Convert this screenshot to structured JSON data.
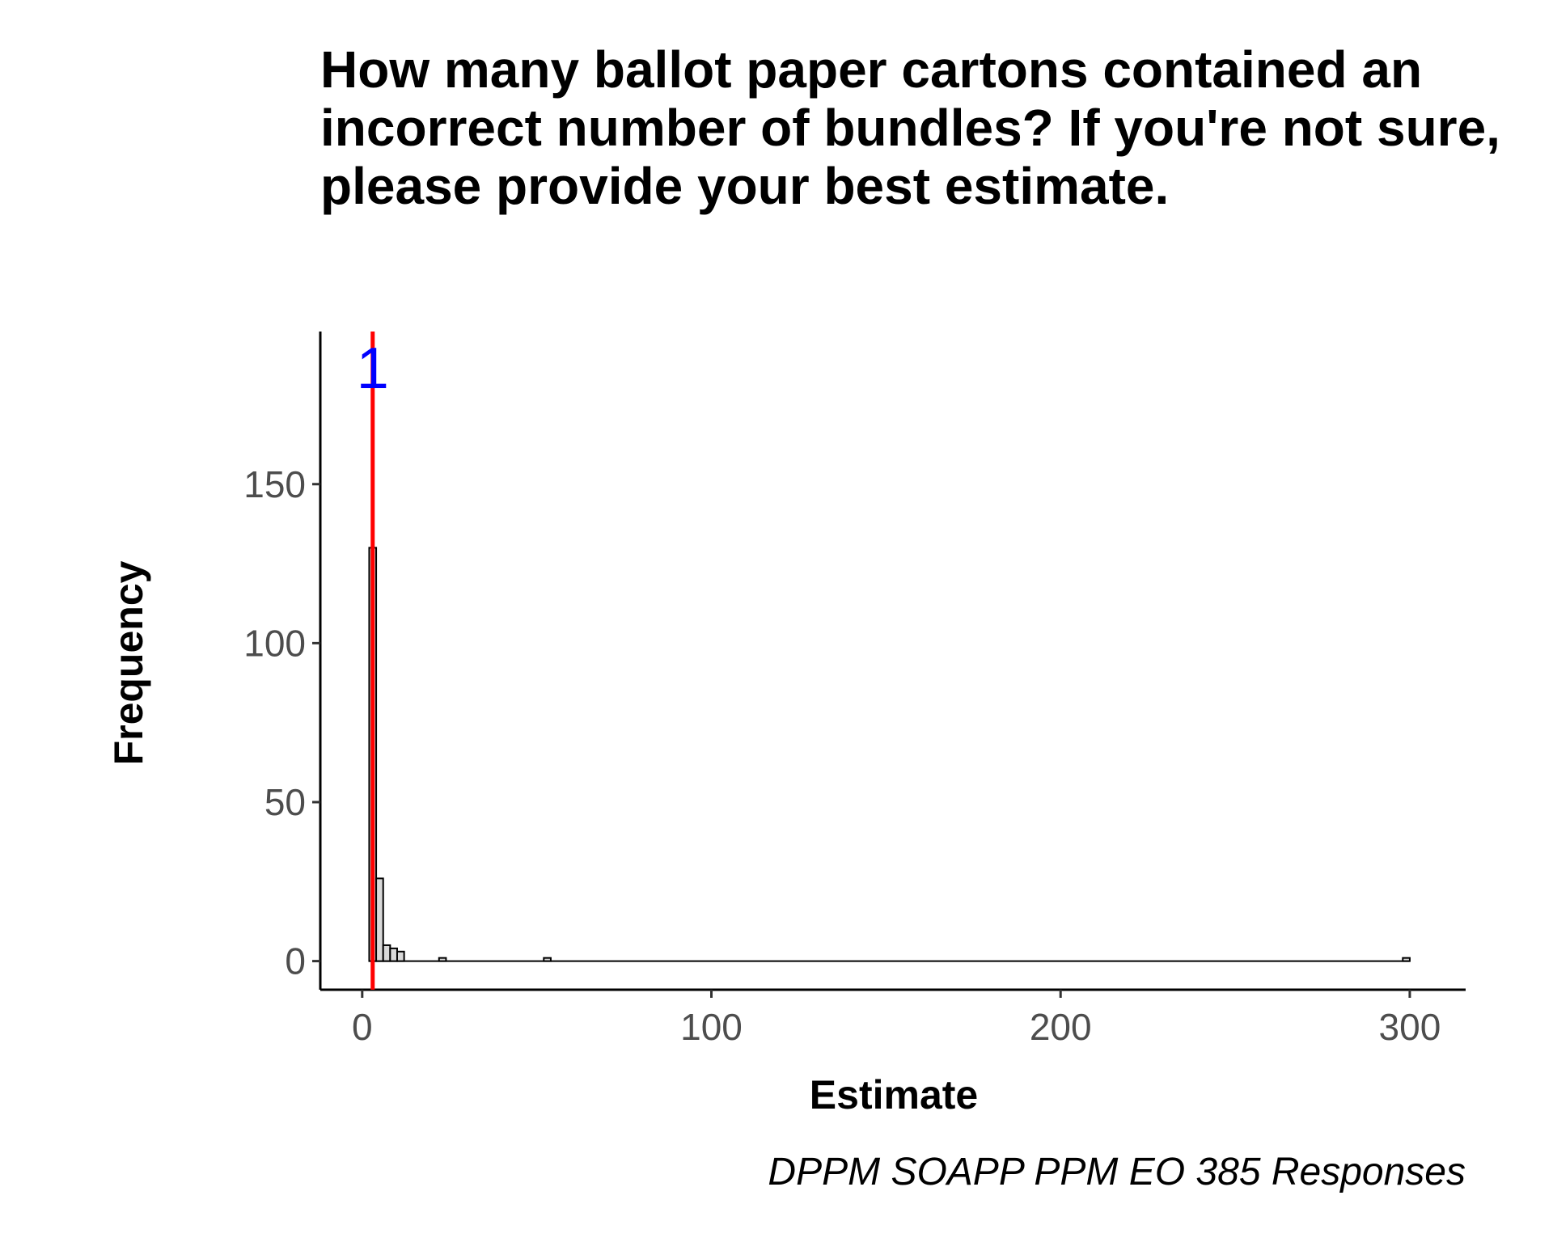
{
  "chart_data": {
    "type": "bar",
    "title_lines": [
      "How many ballot paper cartons contained an",
      "incorrect number of bundles? If you're not sure,",
      "please provide your best estimate."
    ],
    "xlabel": "Estimate",
    "ylabel": "Frequency",
    "caption": "DPPM SOAPP PPM EO 385 Responses",
    "xlim": [
      -12,
      316
    ],
    "ylim": [
      -9,
      198
    ],
    "xticks": [
      0,
      100,
      200,
      300
    ],
    "yticks": [
      0,
      50,
      100,
      150
    ],
    "bin_width": 2,
    "bins": [
      {
        "x0": 2,
        "x1": 4,
        "count": 130
      },
      {
        "x0": 4,
        "x1": 6,
        "count": 26
      },
      {
        "x0": 6,
        "x1": 8,
        "count": 5
      },
      {
        "x0": 8,
        "x1": 10,
        "count": 4
      },
      {
        "x0": 10,
        "x1": 12,
        "count": 3
      },
      {
        "x0": 22,
        "x1": 24,
        "count": 1
      },
      {
        "x0": 52,
        "x1": 54,
        "count": 1
      },
      {
        "x0": 298,
        "x1": 300,
        "count": 1
      }
    ],
    "baseline_range": [
      2,
      300
    ],
    "bar_fill": "#d9d9d9",
    "bar_stroke": "#000000",
    "vline": {
      "x": 3,
      "color": "#ff0000",
      "label": "1",
      "label_color": "#0000ff"
    },
    "grid": false,
    "legend": "none"
  }
}
